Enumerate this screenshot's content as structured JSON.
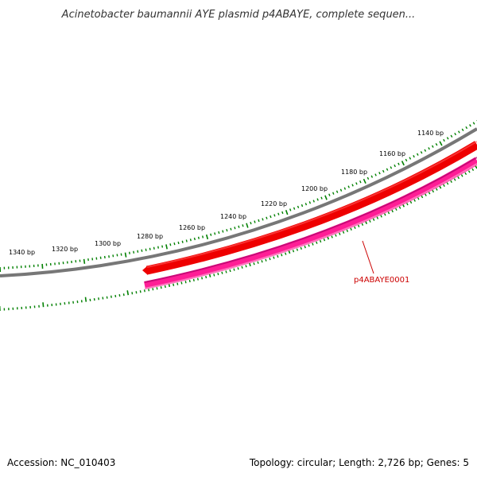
{
  "title": "Acinetobacter baumannii AYE plasmid p4ABAYE, complete sequen...",
  "footer": {
    "accession": "Accession: NC_010403",
    "summary": "Topology: circular; Length: 2,726 bp; Genes: 5"
  },
  "ruler": {
    "labels": [
      "1140 bp",
      "1160 bp",
      "1180 bp",
      "1200 bp",
      "1220 bp",
      "1240 bp",
      "1260 bp",
      "1280 bp",
      "1300 bp",
      "1320 bp",
      "1340 bp"
    ]
  },
  "gene": {
    "label": "p4ABAYE0001"
  },
  "colors": {
    "backbone": "#808080",
    "gene_forward": "#ff0000",
    "gene_cds": "#ff1493",
    "tick": "#008000",
    "label": "#cc0000"
  }
}
